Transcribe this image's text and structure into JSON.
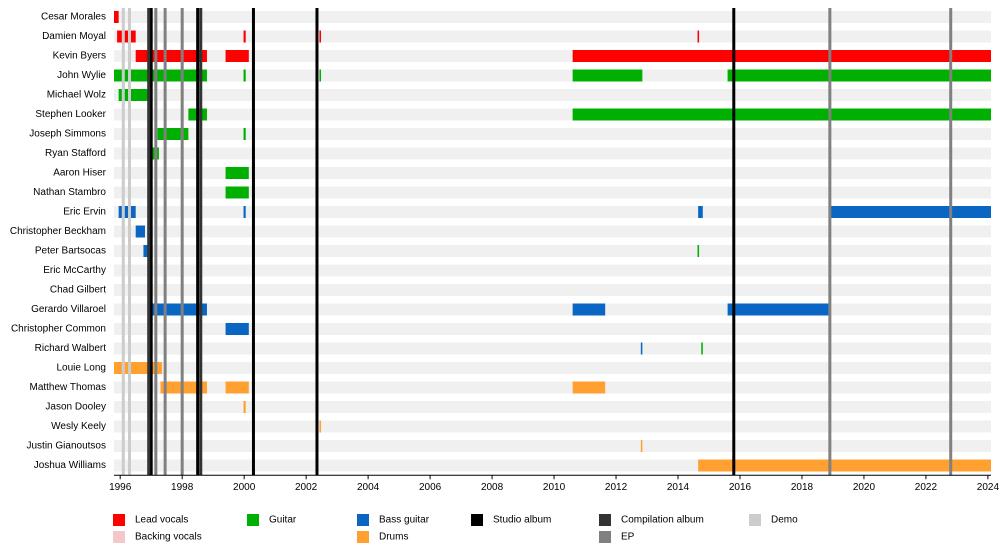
{
  "chart_data": {
    "type": "timeline",
    "xlim": [
      1995.8,
      2024.1
    ],
    "xticks": [
      1996,
      1998,
      2000,
      2002,
      2004,
      2006,
      2008,
      2010,
      2012,
      2014,
      2016,
      2018,
      2020,
      2022,
      2024
    ],
    "roles": [
      {
        "name": "Lead vocals",
        "color": "#ff0000"
      },
      {
        "name": "Backing vocals",
        "color": "#f5c6cc"
      },
      {
        "name": "Guitar",
        "color": "#00b000"
      },
      {
        "name": "Bass guitar",
        "color": "#0a66c2"
      },
      {
        "name": "Drums",
        "color": "#ffa030"
      }
    ],
    "events": [
      {
        "name": "Studio album",
        "color": "#000000",
        "dates": [
          1997.0,
          1998.5,
          2000.3,
          2002.35,
          2015.8
        ]
      },
      {
        "name": "Compilation album",
        "color": "#333333",
        "dates": [
          1996.92,
          1998.6
        ]
      },
      {
        "name": "EP",
        "color": "#808080",
        "dates": [
          1997.15,
          1997.45,
          1998.0,
          2018.9,
          2022.8
        ]
      },
      {
        "name": "Demo",
        "color": "#cccccc",
        "dates": [
          1996.1,
          1996.3
        ]
      }
    ],
    "members": [
      {
        "name": "Cesar Morales",
        "bars": [
          {
            "role": 0,
            "start": 1995.8,
            "end": 1995.95
          }
        ]
      },
      {
        "name": "Damien Moyal",
        "bars": [
          {
            "role": 0,
            "start": 1995.9,
            "end": 1996.5
          },
          {
            "role": 0,
            "start": 1999.98,
            "end": 2000.05
          },
          {
            "role": 0,
            "start": 2002.43,
            "end": 2002.48
          },
          {
            "role": 0,
            "start": 2014.63,
            "end": 2014.68
          }
        ]
      },
      {
        "name": "Kevin Byers",
        "bars": [
          {
            "role": 0,
            "start": 1996.5,
            "end": 1998.8
          },
          {
            "role": 0,
            "start": 1999.4,
            "end": 2000.15
          },
          {
            "role": 0,
            "start": 2010.6,
            "end": 2024.1
          }
        ]
      },
      {
        "name": "John Wylie",
        "bars": [
          {
            "role": 2,
            "start": 1995.8,
            "end": 1998.8
          },
          {
            "role": 2,
            "start": 1999.98,
            "end": 2000.05
          },
          {
            "role": 2,
            "start": 2002.43,
            "end": 2002.48
          },
          {
            "role": 2,
            "start": 2010.6,
            "end": 2012.85
          },
          {
            "role": 2,
            "start": 2015.6,
            "end": 2024.1
          }
        ]
      },
      {
        "name": "Michael Wolz",
        "bars": [
          {
            "role": 2,
            "start": 1995.95,
            "end": 1997.0
          }
        ]
      },
      {
        "name": "Stephen Looker",
        "bars": [
          {
            "role": 2,
            "start": 1998.2,
            "end": 1998.8
          },
          {
            "role": 2,
            "start": 2010.6,
            "end": 2024.1
          }
        ]
      },
      {
        "name": "Joseph Simmons",
        "bars": [
          {
            "role": 2,
            "start": 1997.2,
            "end": 1998.2
          },
          {
            "role": 2,
            "start": 1999.98,
            "end": 2000.05
          }
        ]
      },
      {
        "name": "Ryan Stafford",
        "bars": [
          {
            "role": 2,
            "start": 1997.0,
            "end": 1997.25
          }
        ]
      },
      {
        "name": "Aaron Hiser",
        "bars": [
          {
            "role": 2,
            "start": 1999.4,
            "end": 2000.15
          }
        ]
      },
      {
        "name": "Nathan Stambro",
        "bars": [
          {
            "role": 2,
            "start": 1999.4,
            "end": 2000.15
          }
        ]
      },
      {
        "name": "Eric Ervin",
        "bars": [
          {
            "role": 3,
            "start": 1995.95,
            "end": 1996.5
          },
          {
            "role": 3,
            "start": 1999.98,
            "end": 2000.05
          },
          {
            "role": 3,
            "start": 2014.65,
            "end": 2014.8
          },
          {
            "role": 3,
            "start": 2018.9,
            "end": 2024.1
          }
        ]
      },
      {
        "name": "Christopher Beckham",
        "bars": [
          {
            "role": 3,
            "start": 1996.5,
            "end": 1996.8
          }
        ]
      },
      {
        "name": "Peter Bartsocas",
        "bars": [
          {
            "role": 3,
            "start": 1996.75,
            "end": 1996.9
          },
          {
            "role": 2,
            "start": 2014.63,
            "end": 2014.68
          }
        ]
      },
      {
        "name": "Eric McCarthy",
        "bars": [
          {
            "role": 3,
            "start": 1996.88,
            "end": 1997.0
          }
        ]
      },
      {
        "name": "Chad Gilbert",
        "bars": []
      },
      {
        "name": "Gerardo Villaroel",
        "bars": [
          {
            "role": 3,
            "start": 1997.0,
            "end": 1998.8
          },
          {
            "role": 3,
            "start": 2010.6,
            "end": 2011.65
          },
          {
            "role": 3,
            "start": 2015.6,
            "end": 2018.9
          }
        ]
      },
      {
        "name": "Christopher Common",
        "bars": [
          {
            "role": 3,
            "start": 1999.4,
            "end": 2000.15
          }
        ]
      },
      {
        "name": "Richard Walbert",
        "bars": [
          {
            "role": 3,
            "start": 2012.8,
            "end": 2012.85
          },
          {
            "role": 2,
            "start": 2014.75,
            "end": 2014.8
          }
        ]
      },
      {
        "name": "Louie Long",
        "bars": [
          {
            "role": 4,
            "start": 1995.8,
            "end": 1997.35
          }
        ]
      },
      {
        "name": "Matthew Thomas",
        "bars": [
          {
            "role": 4,
            "start": 1997.3,
            "end": 1998.8
          },
          {
            "role": 4,
            "start": 1999.4,
            "end": 2000.15
          },
          {
            "role": 4,
            "start": 2010.6,
            "end": 2011.65
          }
        ]
      },
      {
        "name": "Jason Dooley",
        "bars": [
          {
            "role": 4,
            "start": 1999.98,
            "end": 2000.05
          }
        ]
      },
      {
        "name": "Wesly Keely",
        "bars": [
          {
            "role": 4,
            "start": 2002.43,
            "end": 2002.48
          }
        ]
      },
      {
        "name": "Justin Gianoutsos",
        "bars": [
          {
            "role": 4,
            "start": 2012.8,
            "end": 2012.85
          }
        ]
      },
      {
        "name": "Joshua Williams",
        "bars": [
          {
            "role": 4,
            "start": 2014.65,
            "end": 2024.1
          }
        ]
      }
    ]
  }
}
